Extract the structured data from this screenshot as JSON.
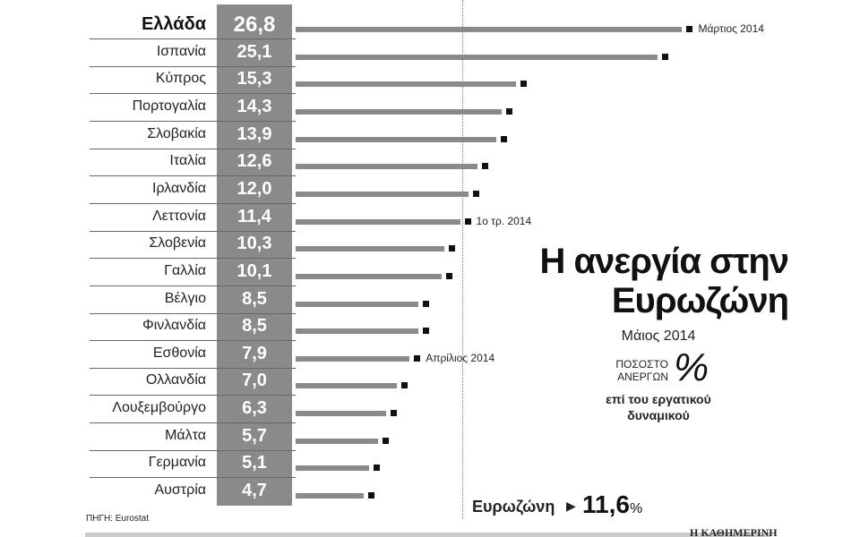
{
  "chart_data": {
    "type": "bar",
    "orientation": "horizontal",
    "title": "Η ανεργία στην Ευρωζώνη",
    "subtitle": "Μάιος 2014",
    "unit_line1": "ΠΟΣΟΣΤΟ",
    "unit_line2": "ΑΝΕΡΓΩΝ",
    "unit_symbol": "%",
    "description": "επί του εργατικού δυναμικού",
    "categories": [
      "Ελλάδα",
      "Ισπανία",
      "Κύπρος",
      "Πορτογαλία",
      "Σλοβακία",
      "Ιταλία",
      "Ιρλανδία",
      "Λεττονία",
      "Σλοβενία",
      "Γαλλία",
      "Βέλγιο",
      "Φινλανδία",
      "Εσθονία",
      "Ολλανδία",
      "Λουξεμβούργο",
      "Μάλτα",
      "Γερμανία",
      "Αυστρία"
    ],
    "value_labels": [
      "26,8",
      "25,1",
      "15,3",
      "14,3",
      "13,9",
      "12,6",
      "12,0",
      "11,4",
      "10,3",
      "10,1",
      "8,5",
      "8,5",
      "7,9",
      "7,0",
      "6,3",
      "5,7",
      "5,1",
      "4,7"
    ],
    "values": [
      26.8,
      25.1,
      15.3,
      14.3,
      13.9,
      12.6,
      12.0,
      11.4,
      10.3,
      10.1,
      8.5,
      8.5,
      7.9,
      7.0,
      6.3,
      5.7,
      5.1,
      4.7
    ],
    "annotations": [
      {
        "category_index": 0,
        "text": "Μάρτιος 2014"
      },
      {
        "category_index": 7,
        "text": "1ο τρ. 2014"
      },
      {
        "category_index": 12,
        "text": "Απρίλιος 2014"
      }
    ],
    "reference": {
      "label": "Ευρωζώνη",
      "value_text": "11,6",
      "suffix": "%",
      "value": 11.6
    },
    "source": "ΠΗΓΗ: Eurostat",
    "publisher": "Η ΚΑΘΗΜΕΡΙΝΗ",
    "colors": {
      "bar": "#8a8a8c",
      "marker": "#111111"
    }
  }
}
